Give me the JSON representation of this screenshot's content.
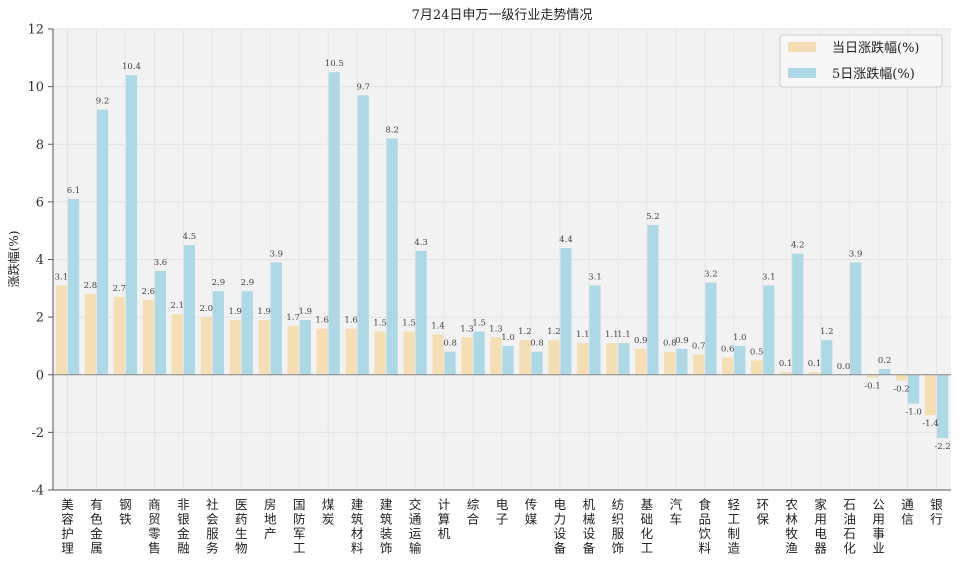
{
  "chart_data": {
    "type": "bar",
    "title": "7月24日申万一级行业走势情况",
    "ylabel": "涨跌幅(%)",
    "xlabel": "",
    "ylim": [
      -4,
      12
    ],
    "yticks": [
      "-4",
      "-2",
      "0",
      "2",
      "4",
      "6",
      "8",
      "10",
      "12"
    ],
    "grid": true,
    "legend_position": "top-right",
    "categories": [
      "美容护理",
      "有色金属",
      "钢铁",
      "商贸零售",
      "非银金融",
      "社会服务",
      "医药生物",
      "房地产",
      "国防军工",
      "煤炭",
      "建筑材料",
      "建筑装饰",
      "交通运输",
      "计算机",
      "综合",
      "电子",
      "传媒",
      "电力设备",
      "机械设备",
      "纺织服饰",
      "基础化工",
      "汽车",
      "食品饮料",
      "轻工制造",
      "环保",
      "农林牧渔",
      "家用电器",
      "石油石化",
      "公用事业",
      "通信",
      "银行"
    ],
    "series": [
      {
        "name": "当日涨跌幅(%)",
        "color": "#f5deb3",
        "values": [
          3.1,
          2.8,
          2.7,
          2.6,
          2.1,
          2.0,
          1.9,
          1.9,
          1.7,
          1.6,
          1.6,
          1.5,
          1.5,
          1.4,
          1.3,
          1.3,
          1.2,
          1.2,
          1.1,
          1.1,
          0.9,
          0.8,
          0.7,
          0.6,
          0.5,
          0.1,
          0.1,
          0.0,
          -0.1,
          -0.2,
          -1.4
        ],
        "labels": [
          "3.1",
          "2.8",
          "2.7",
          "2.6",
          "2.1",
          "2.0",
          "1.9",
          "1.9",
          "1.7",
          "1.6",
          "1.6",
          "1.5",
          "1.5",
          "1.4",
          "1.3",
          "1.3",
          "1.2",
          "1.2",
          "1.1",
          "1.1",
          "0.9",
          "0.8",
          "0.7",
          "0.6",
          "0.5",
          "0.1",
          "0.1",
          "0.0",
          "-0.1",
          "-0.2",
          "-1.4"
        ]
      },
      {
        "name": "5日涨跌幅(%)",
        "color": "#add8e6",
        "values": [
          6.1,
          9.2,
          10.4,
          3.6,
          4.5,
          2.9,
          2.9,
          3.9,
          1.9,
          10.5,
          9.7,
          8.2,
          4.3,
          0.8,
          1.5,
          1.0,
          0.8,
          4.4,
          3.1,
          1.1,
          5.2,
          0.9,
          3.2,
          1.0,
          3.1,
          4.2,
          1.2,
          3.9,
          0.2,
          -1.0,
          -2.2
        ],
        "labels": [
          "6.1",
          "9.2",
          "10.4",
          "3.6",
          "4.5",
          "2.9",
          "2.9",
          "3.9",
          "1.9",
          "10.5",
          "9.7",
          "8.2",
          "4.3",
          "0.8",
          "1.5",
          "1.0",
          "0.8",
          "4.4",
          "3.1",
          "1.1",
          "5.2",
          "0.9",
          "3.2",
          "1.0",
          "3.1",
          "4.2",
          "1.2",
          "3.9",
          "0.2",
          "-1.0",
          "-2.2"
        ]
      }
    ]
  }
}
